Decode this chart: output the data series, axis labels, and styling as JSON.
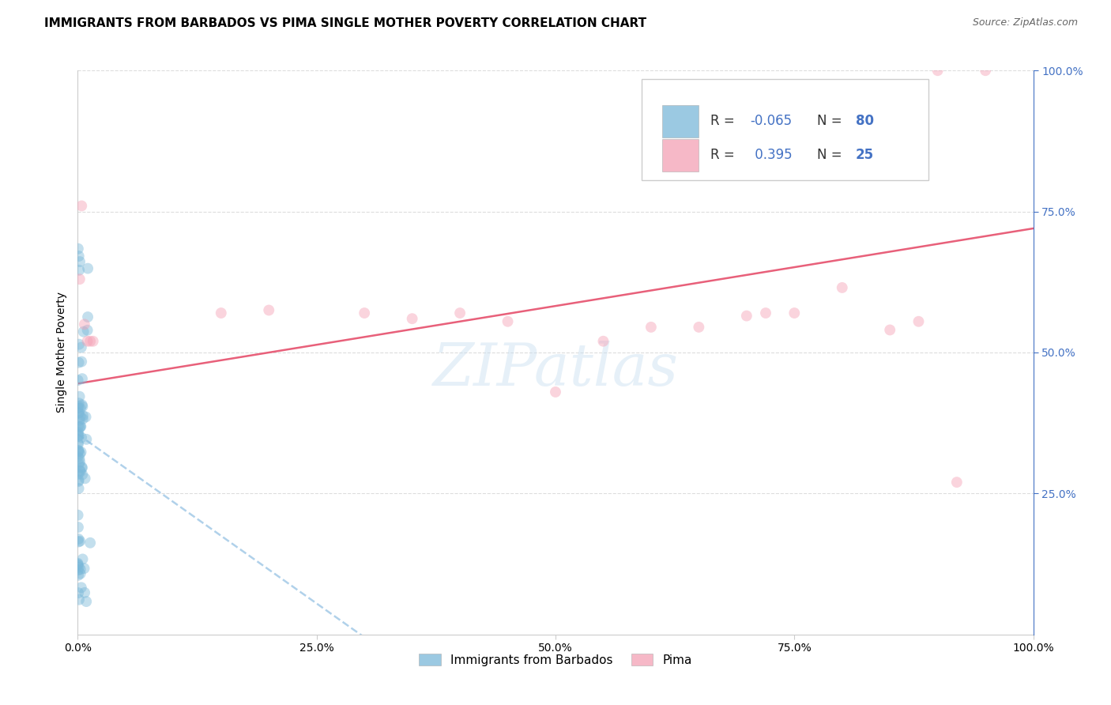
{
  "title": "IMMIGRANTS FROM BARBADOS VS PIMA SINGLE MOTHER POVERTY CORRELATION CHART",
  "source": "Source: ZipAtlas.com",
  "ylabel": "Single Mother Poverty",
  "watermark": "ZIPatlas",
  "blue_label": "Immigrants from Barbados",
  "pink_label": "Pima",
  "blue_R": -0.065,
  "blue_N": 80,
  "pink_R": 0.395,
  "pink_N": 25,
  "blue_color": "#7ab8d9",
  "pink_color": "#f4a0b5",
  "blue_line_color": "#a8cce8",
  "pink_line_color": "#e8607a",
  "xlim": [
    0.0,
    1.0
  ],
  "ylim": [
    0.0,
    1.0
  ],
  "grid_color": "#dddddd",
  "background_color": "#ffffff",
  "title_fontsize": 11,
  "tick_fontsize": 10,
  "marker_size": 100,
  "marker_alpha": 0.45,
  "line_width": 1.8,
  "blue_intercept": 0.355,
  "blue_slope": -1.2,
  "pink_intercept": 0.445,
  "pink_slope": 0.275,
  "right_tick_color": "#4472c4",
  "legend_R_color": "#4472c4",
  "legend_N_color": "#4472c4"
}
